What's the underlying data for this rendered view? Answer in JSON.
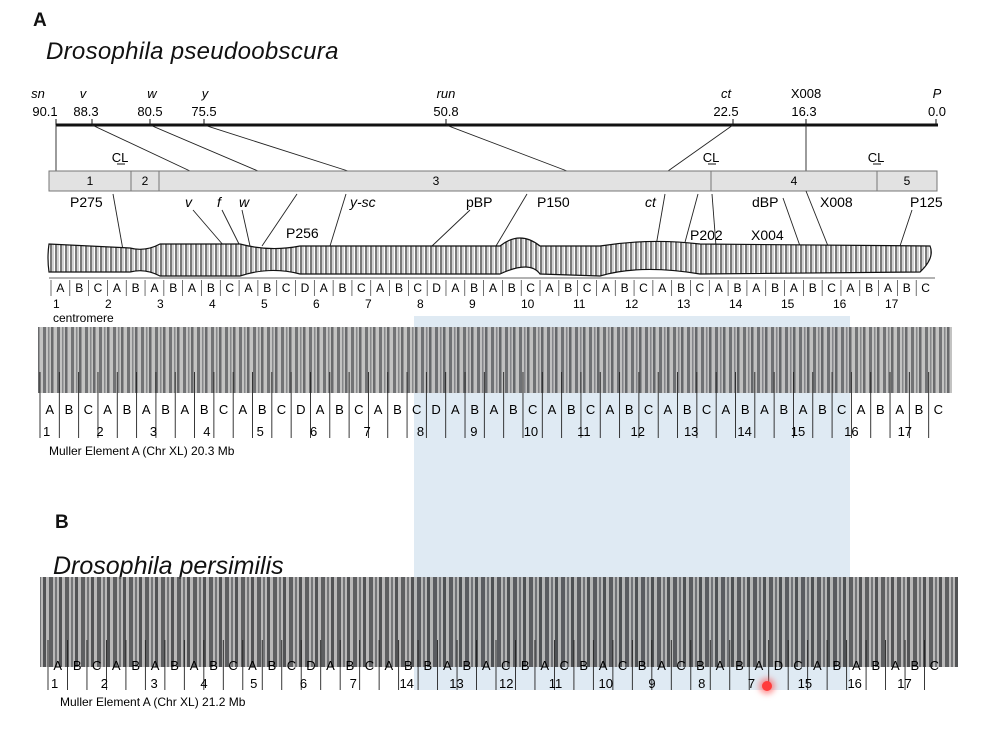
{
  "panel_a": {
    "letter": "A",
    "species": "Drosophila pseudoobscura",
    "genetic_map": {
      "genes": [
        {
          "name": "sn",
          "pos": "90.1"
        },
        {
          "name": "v",
          "pos": "88.3"
        },
        {
          "name": "w",
          "pos": "80.5"
        },
        {
          "name": "y",
          "pos": "75.5"
        },
        {
          "name": "run",
          "pos": "50.8"
        },
        {
          "name": "ct",
          "pos": "22.5"
        },
        {
          "name": "X008",
          "pos": "16.3"
        },
        {
          "name": "P",
          "pos": "0.0"
        }
      ]
    },
    "cl_labels": [
      "CL",
      "CL",
      "CL"
    ],
    "sections": [
      "1",
      "2",
      "3",
      "4",
      "5"
    ],
    "markers": [
      "P275",
      "v",
      "f",
      "w",
      "P256",
      "y-sc",
      "pBP",
      "P150",
      "ct",
      "P202",
      "dBP",
      "X004",
      "X008",
      "P125"
    ],
    "drawing_divisions": [
      "1",
      "2",
      "3",
      "4",
      "5",
      "6",
      "7",
      "8",
      "9",
      "10",
      "11",
      "12",
      "13",
      "14",
      "15",
      "16",
      "17"
    ],
    "drawing_subs": [
      "A",
      "B",
      "C",
      "A",
      "B",
      "A",
      "B",
      "A",
      "B",
      "C",
      "A",
      "B",
      "C",
      "D",
      "A",
      "B",
      "C",
      "A",
      "B",
      "C",
      "D",
      "A",
      "B",
      "A",
      "B",
      "C",
      "A",
      "B",
      "C",
      "A",
      "B",
      "C",
      "A",
      "B",
      "C",
      "A",
      "B",
      "A",
      "B",
      "A",
      "B",
      "C",
      "A",
      "B",
      "A",
      "B",
      "C"
    ],
    "centromere_label": "centromere",
    "photo_divisions": [
      "1",
      "2",
      "3",
      "4",
      "5",
      "6",
      "7",
      "8",
      "9",
      "10",
      "11",
      "12",
      "13",
      "14",
      "15",
      "16",
      "17"
    ],
    "photo_subs": [
      "A",
      "B",
      "C",
      "A",
      "B",
      "A",
      "B",
      "A",
      "B",
      "C",
      "A",
      "B",
      "C",
      "D",
      "A",
      "B",
      "C",
      "A",
      "B",
      "C",
      "D",
      "A",
      "B",
      "A",
      "B",
      "C",
      "A",
      "B",
      "C",
      "A",
      "B",
      "C",
      "A",
      "B",
      "C",
      "A",
      "B",
      "A",
      "B",
      "A",
      "B",
      "C",
      "A",
      "B",
      "A",
      "B",
      "C"
    ],
    "caption": "Muller Element  A (Chr XL) 20.3 Mb"
  },
  "panel_b": {
    "letter": "B",
    "species": "Drosophila persimilis",
    "divisions": [
      "1",
      "2",
      "3",
      "4",
      "5",
      "6",
      "7",
      "14",
      "13",
      "12",
      "11",
      "10",
      "9",
      "8",
      "7",
      "15",
      "16",
      "17"
    ],
    "subs": [
      "A",
      "B",
      "C",
      "A",
      "B",
      "A",
      "B",
      "A",
      "B",
      "C",
      "A",
      "B",
      "C",
      "D",
      "A",
      "B",
      "C",
      "A",
      "B",
      "B",
      "A",
      "B",
      "A",
      "C",
      "B",
      "A",
      "C",
      "B",
      "A",
      "C",
      "B",
      "A",
      "C",
      "B",
      "A",
      "B",
      "A",
      "D",
      "C",
      "A",
      "B",
      "A",
      "B",
      "A",
      "B",
      "C"
    ],
    "caption": "Muller Element A (Chr XL) 21.2 Mb"
  }
}
